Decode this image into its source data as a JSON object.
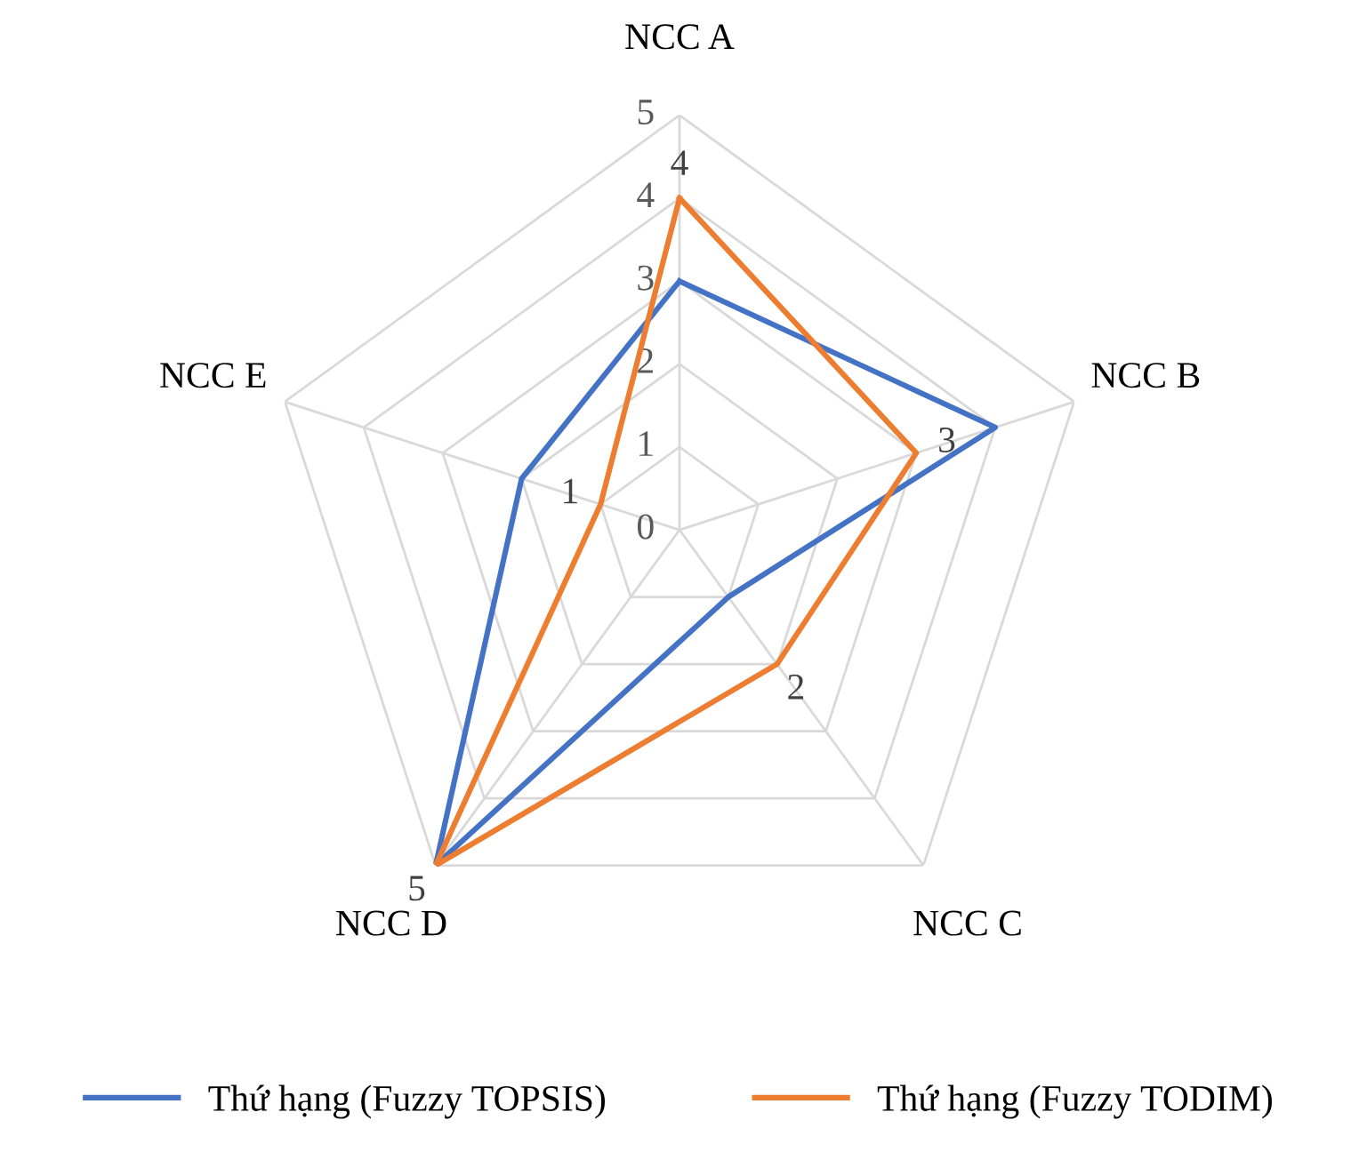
{
  "chart_data": {
    "type": "radar",
    "categories": [
      "NCC A",
      "NCC B",
      "NCC C",
      "NCC D",
      "NCC E"
    ],
    "series": [
      {
        "name": "Thứ hạng (Fuzzy TOPSIS)",
        "color": "#4472c4",
        "values": [
          3,
          4,
          1,
          5,
          2
        ]
      },
      {
        "name": "Thứ hạng (Fuzzy TODIM)",
        "color": "#ed7d31",
        "values": [
          4,
          3,
          2,
          5,
          1
        ],
        "value_labels": [
          "4",
          "3",
          "2",
          "5",
          "1"
        ]
      }
    ],
    "ylim": [
      0,
      5
    ],
    "yticks": [
      0,
      1,
      2,
      3,
      4,
      5
    ],
    "grid": true,
    "legend": "bottom",
    "marker": "none",
    "line_style": "solid"
  }
}
